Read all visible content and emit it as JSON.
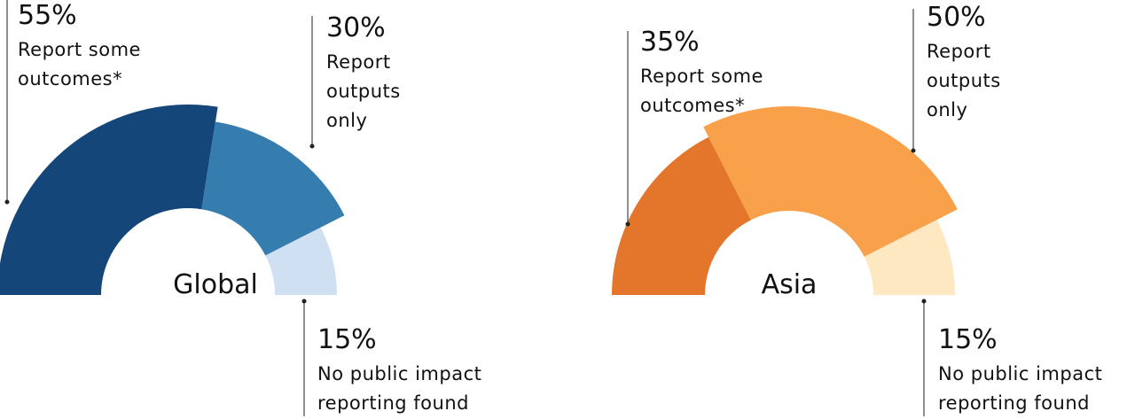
{
  "chart_data": [
    {
      "type": "pie",
      "title": "Global",
      "categories": [
        "Report some outcomes*",
        "Report outputs only",
        "No public impact reporting found"
      ],
      "values": [
        55,
        30,
        15
      ],
      "value_labels": [
        "55%",
        "30%",
        "15%"
      ],
      "colors": [
        "#15467a",
        "#357daf",
        "#d0e0f3"
      ]
    },
    {
      "type": "pie",
      "title": "Asia",
      "categories": [
        "Report some outcomes*",
        "Report outputs only",
        "No public impact reporting found"
      ],
      "values": [
        35,
        50,
        15
      ],
      "value_labels": [
        "35%",
        "50%",
        "15%"
      ],
      "colors": [
        "#e3762a",
        "#f8a04a",
        "#fde8c2"
      ]
    }
  ]
}
